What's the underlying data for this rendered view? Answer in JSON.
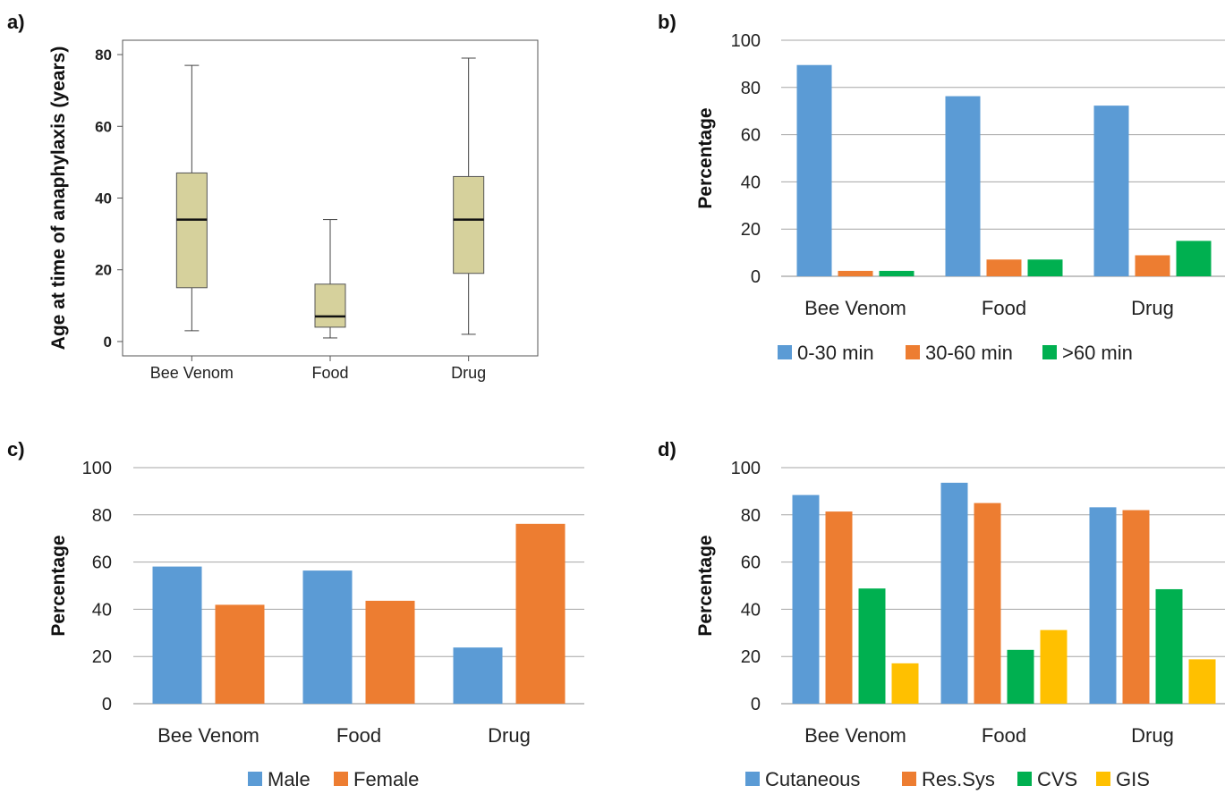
{
  "chart_data": [
    {
      "panel": "a)",
      "type": "boxplot",
      "categories": [
        "Bee Venom",
        "Food",
        "Drug"
      ],
      "ylabel": "Age at time of anaphylaxis (years)",
      "xlabel": "",
      "ylim": [
        -4,
        84
      ],
      "yticks": [
        0,
        20,
        40,
        60,
        80
      ],
      "grid": false,
      "box_color": "#d6d19c",
      "boxes": [
        {
          "category": "Bee Venom",
          "min": 3,
          "q1": 15,
          "median": 34,
          "q3": 47,
          "max": 77
        },
        {
          "category": "Food",
          "min": 1,
          "q1": 4,
          "median": 7,
          "q3": 16,
          "max": 34
        },
        {
          "category": "Drug",
          "min": 2,
          "q1": 19,
          "median": 34,
          "q3": 46,
          "max": 79
        }
      ]
    },
    {
      "panel": "b)",
      "type": "bar",
      "categories": [
        "Bee Venom",
        "Food",
        "Drug"
      ],
      "ylabel": "Percentage",
      "xlabel": "",
      "ylim": [
        0,
        100
      ],
      "yticks": [
        0,
        20,
        40,
        60,
        80,
        100
      ],
      "grid": true,
      "legend": "bottom",
      "series": [
        {
          "name": "0-30 min",
          "color": "#5b9bd5",
          "values": [
            89.5,
            76.3,
            72.3
          ]
        },
        {
          "name": "30-60 min",
          "color": "#ed7d31",
          "values": [
            2.3,
            7.1,
            8.9
          ]
        },
        {
          "name": ">60 min",
          "color": "#00b050",
          "values": [
            2.3,
            7.1,
            15
          ]
        }
      ]
    },
    {
      "panel": "c)",
      "type": "bar",
      "categories": [
        "Bee Venom",
        "Food",
        "Drug"
      ],
      "ylabel": "Percentage",
      "xlabel": "",
      "ylim": [
        0,
        100
      ],
      "yticks": [
        0,
        20,
        40,
        60,
        80,
        100
      ],
      "grid": true,
      "legend": "bottom",
      "series": [
        {
          "name": "Male",
          "color": "#5b9bd5",
          "values": [
            58.1,
            56.4,
            23.8
          ]
        },
        {
          "name": "Female",
          "color": "#ed7d31",
          "values": [
            41.9,
            43.6,
            76.2
          ]
        }
      ]
    },
    {
      "panel": "d)",
      "type": "bar",
      "categories": [
        "Bee Venom",
        "Food",
        "Drug"
      ],
      "ylabel": "Percentage",
      "xlabel": "",
      "ylim": [
        0,
        100
      ],
      "yticks": [
        0,
        20,
        40,
        60,
        80,
        100
      ],
      "grid": true,
      "legend": "bottom",
      "series": [
        {
          "name": "Cutaneous",
          "color": "#5b9bd5",
          "values": [
            88.4,
            93.6,
            83.2
          ]
        },
        {
          "name": "Res.Sys",
          "color": "#ed7d31",
          "values": [
            81.4,
            85.0,
            82.0
          ]
        },
        {
          "name": "CVS",
          "color": "#00b050",
          "values": [
            48.8,
            22.8,
            48.5
          ]
        },
        {
          "name": "GIS",
          "color": "#ffc000",
          "values": [
            17.1,
            31.2,
            18.8
          ]
        }
      ]
    }
  ]
}
